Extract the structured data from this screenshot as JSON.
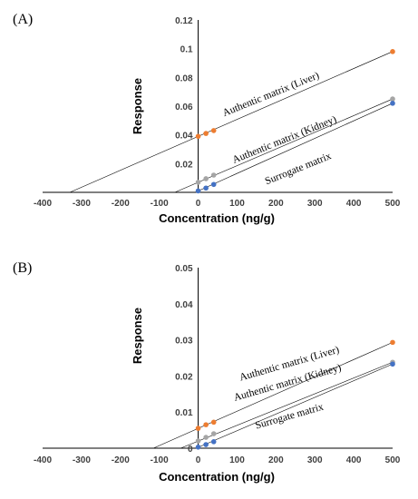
{
  "chart_data": [
    {
      "panel_label": "(A)",
      "type": "scatter",
      "xlabel": "Concentration (ng/g)",
      "ylabel": "Response",
      "xlim": [
        -400,
        500
      ],
      "ylim": [
        0,
        0.12
      ],
      "x_ticks": [
        "-400",
        "-300",
        "-200",
        "-100",
        "0",
        "100",
        "200",
        "300",
        "400",
        "500"
      ],
      "y_ticks": [
        "0.02",
        "0.04",
        "0.06",
        "0.08",
        "0.1",
        "0.12"
      ],
      "series": [
        {
          "label": "Authentic matrix (Liver)",
          "color": "#ED7D31",
          "points": [
            [
              0,
              0.039
            ],
            [
              20,
              0.041
            ],
            [
              40,
              0.043
            ],
            [
              500,
              0.098
            ]
          ],
          "line_x": [
            -330,
            500
          ],
          "line_y": [
            0.0,
            0.098
          ]
        },
        {
          "label": "Authentic matrix (Kidney)",
          "color": "#A5A5A5",
          "points": [
            [
              0,
              0.007
            ],
            [
              20,
              0.0095
            ],
            [
              40,
              0.012
            ],
            [
              500,
              0.065
            ]
          ],
          "line_x": [
            -60,
            500
          ],
          "line_y": [
            0.0,
            0.065
          ]
        },
        {
          "label": "Surrogate matrix",
          "color": "#4472C4",
          "points": [
            [
              0,
              0.001
            ],
            [
              20,
              0.003
            ],
            [
              40,
              0.0055
            ],
            [
              500,
              0.062
            ]
          ],
          "line_x": [
            -8,
            500
          ],
          "line_y": [
            0.0,
            0.062
          ]
        }
      ]
    },
    {
      "panel_label": "(B)",
      "type": "scatter",
      "xlabel": "Concentration (ng/g)",
      "ylabel": "Response",
      "xlim": [
        -400,
        500
      ],
      "ylim": [
        0,
        0.05
      ],
      "x_ticks": [
        "-400",
        "-300",
        "-200",
        "-100",
        "0",
        "100",
        "200",
        "300",
        "400",
        "500"
      ],
      "y_ticks": [
        "0",
        "0.01",
        "0.02",
        "0.03",
        "0.04",
        "0.05"
      ],
      "series": [
        {
          "label": "Authentic matrix (Liver)",
          "color": "#ED7D31",
          "points": [
            [
              0,
              0.0055
            ],
            [
              20,
              0.0065
            ],
            [
              40,
              0.0072
            ],
            [
              500,
              0.0293
            ]
          ],
          "line_x": [
            -115,
            500
          ],
          "line_y": [
            0.0,
            0.0293
          ]
        },
        {
          "label": "Authentic matrix (Kidney)",
          "color": "#A5A5A5",
          "points": [
            [
              0,
              0.002
            ],
            [
              20,
              0.003
            ],
            [
              40,
              0.004
            ],
            [
              500,
              0.0238
            ]
          ],
          "line_x": [
            -45,
            500
          ],
          "line_y": [
            0.0,
            0.0238
          ]
        },
        {
          "label": "Surrogate matrix",
          "color": "#4472C4",
          "points": [
            [
              0,
              0.0003
            ],
            [
              20,
              0.001
            ],
            [
              40,
              0.0018
            ],
            [
              500,
              0.0233
            ]
          ],
          "line_x": [
            -5,
            500
          ],
          "line_y": [
            0.0,
            0.0233
          ]
        }
      ]
    }
  ]
}
